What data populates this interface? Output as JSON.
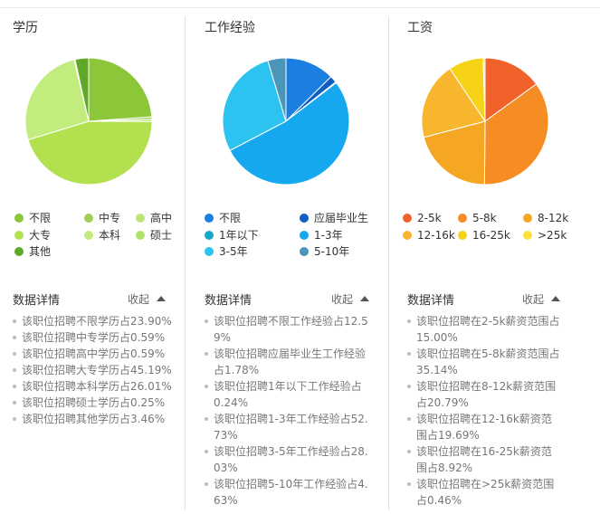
{
  "sections": [
    {
      "title": "学历",
      "collapse_label": "收起",
      "detail_title": "数据详情",
      "legend": [
        {
          "label": "不限",
          "color": "#8cc739"
        },
        {
          "label": "中专",
          "color": "#a0cf54"
        },
        {
          "label": "高中",
          "color": "#bde47a"
        },
        {
          "label": "大专",
          "color": "#b3e04f"
        },
        {
          "label": "本科",
          "color": "#c3ec7f"
        },
        {
          "label": "硕士",
          "color": "#aee26a"
        },
        {
          "label": "其他",
          "color": "#5fa829"
        }
      ],
      "details": [
        "该职位招聘不限学历占23.90%",
        "该职位招聘中专学历占0.59%",
        "该职位招聘高中学历占0.59%",
        "该职位招聘大专学历占45.19%",
        "该职位招聘本科学历占26.01%",
        "该职位招聘硕士学历占0.25%",
        "该职位招聘其他学历占3.46%"
      ]
    },
    {
      "title": "工作经验",
      "collapse_label": "收起",
      "detail_title": "数据详情",
      "legend": [
        {
          "label": "不限",
          "color": "#1a7fe0"
        },
        {
          "label": "应届毕业生",
          "color": "#0f5fc0"
        },
        {
          "label": "1年以下",
          "color": "#17a7c9"
        },
        {
          "label": "1-3年",
          "color": "#16a8ef"
        },
        {
          "label": "3-5年",
          "color": "#2cc3f0"
        },
        {
          "label": "5-10年",
          "color": "#4b95b8"
        }
      ],
      "details": [
        "该职位招聘不限工作经验占12.59%",
        "该职位招聘应届毕业生工作经验占1.78%",
        "该职位招聘1年以下工作经验占0.24%",
        "该职位招聘1-3年工作经验占52.73%",
        "该职位招聘3-5年工作经验占28.03%",
        "该职位招聘5-10年工作经验占4.63%"
      ]
    },
    {
      "title": "工资",
      "collapse_label": "收起",
      "detail_title": "数据详情",
      "legend": [
        {
          "label": "2-5k",
          "color": "#f0622a"
        },
        {
          "label": "5-8k",
          "color": "#f58d24"
        },
        {
          "label": "8-12k",
          "color": "#f5a623"
        },
        {
          "label": "12-16k",
          "color": "#f8b62f"
        },
        {
          "label": "16-25k",
          "color": "#f6d317"
        },
        {
          "label": ">25k",
          "color": "#fbe23c"
        }
      ],
      "details": [
        "该职位招聘在2-5k薪资范围占15.00%",
        "该职位招聘在5-8k薪资范围占35.14%",
        "该职位招聘在8-12k薪资范围占20.79%",
        "该职位招聘在12-16k薪资范围占19.69%",
        "该职位招聘在16-25k薪资范围占8.92%",
        "该职位招聘在>25k薪资范围占0.46%"
      ]
    }
  ],
  "chart_data": [
    {
      "type": "pie",
      "title": "学历",
      "categories": [
        "不限",
        "中专",
        "高中",
        "大专",
        "本科",
        "硕士",
        "其他"
      ],
      "values": [
        23.9,
        0.59,
        0.59,
        45.19,
        26.01,
        0.25,
        3.46
      ],
      "colors": [
        "#8cc739",
        "#a0cf54",
        "#bde47a",
        "#b3e04f",
        "#c3ec7f",
        "#aee26a",
        "#5fa829"
      ],
      "legend": "bottom"
    },
    {
      "type": "pie",
      "title": "工作经验",
      "categories": [
        "不限",
        "应届毕业生",
        "1年以下",
        "1-3年",
        "3-5年",
        "5-10年"
      ],
      "values": [
        12.59,
        1.78,
        0.24,
        52.73,
        28.03,
        4.63
      ],
      "colors": [
        "#1a7fe0",
        "#0f5fc0",
        "#17a7c9",
        "#16a8ef",
        "#2cc3f0",
        "#4b95b8"
      ],
      "legend": "bottom"
    },
    {
      "type": "pie",
      "title": "工资",
      "categories": [
        "2-5k",
        "5-8k",
        "8-12k",
        "12-16k",
        "16-25k",
        ">25k"
      ],
      "values": [
        15.0,
        35.14,
        20.79,
        19.69,
        8.92,
        0.46
      ],
      "colors": [
        "#f0622a",
        "#f58d24",
        "#f5a623",
        "#f8b62f",
        "#f6d317",
        "#fbe23c"
      ],
      "legend": "bottom"
    }
  ]
}
